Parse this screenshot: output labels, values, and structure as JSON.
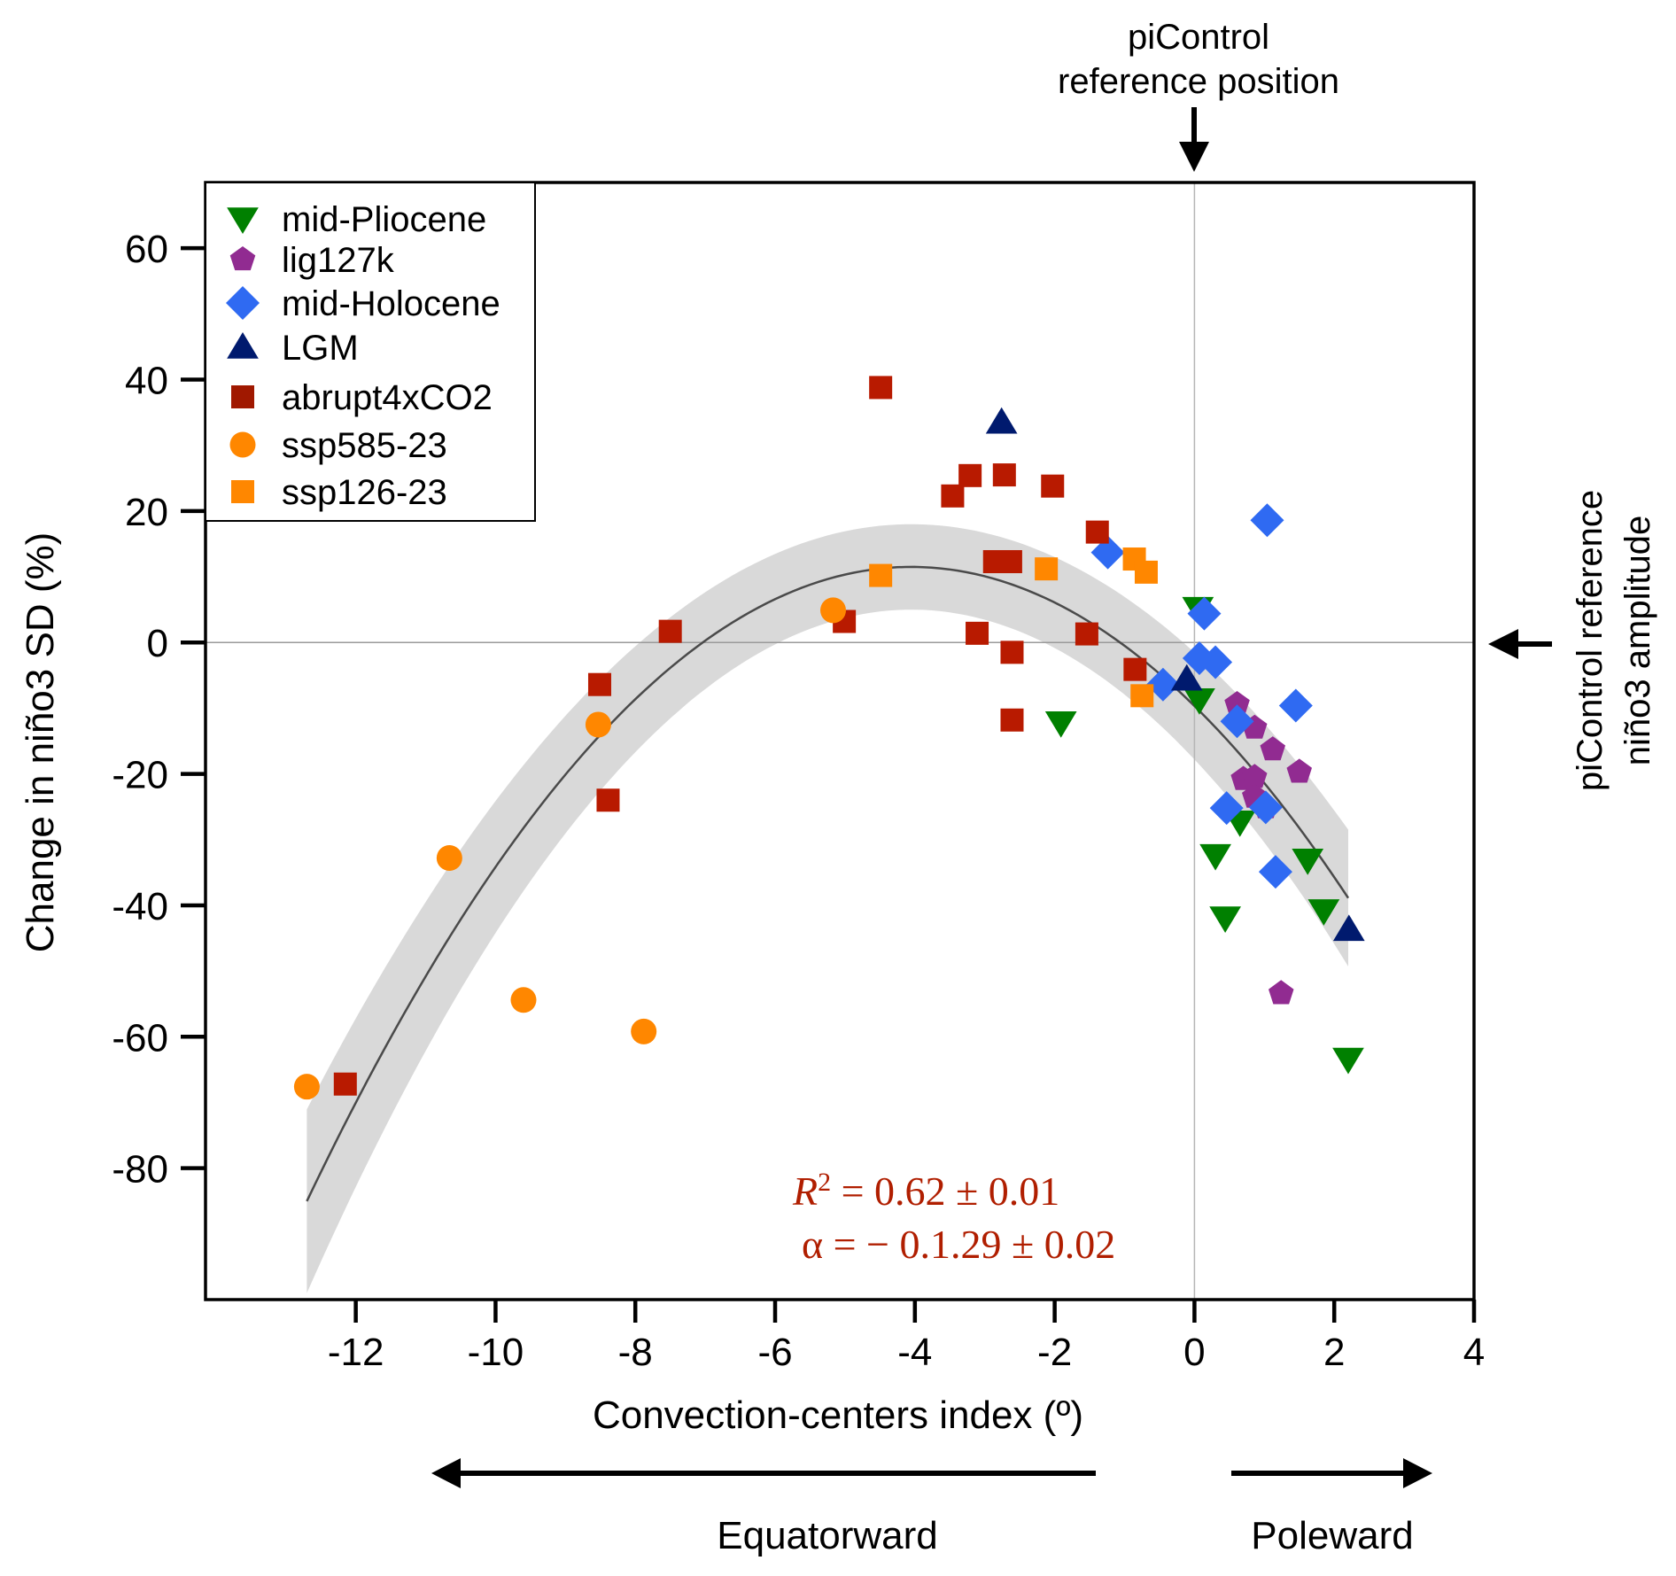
{
  "chart_data": {
    "type": "scatter",
    "xlabel": "Convection-centers index (º)",
    "ylabel": "Change in niño3 SD (%)",
    "xlim": [
      -14.15,
      4
    ],
    "ylim": [
      -100,
      70
    ],
    "x_ticks": [
      -12,
      -10,
      -8,
      -6,
      -4,
      -2,
      0,
      2,
      4
    ],
    "x_tick_labels": [
      "-12",
      "-10",
      "-8",
      "-6",
      "-4",
      "-2",
      "0",
      "2",
      "4"
    ],
    "y_ticks": [
      60,
      40,
      20,
      0,
      -20,
      -40,
      -60,
      -80
    ],
    "y_tick_labels": [
      "60",
      "40",
      "20",
      "0",
      "-20",
      "-40",
      "-60",
      "-80"
    ],
    "grid": false,
    "reference_lines": {
      "x": 0,
      "y": 0
    },
    "legend_position": "top-left",
    "series": [
      {
        "name": "mid-Pliocene",
        "marker": "triangle-down",
        "color": "#008000",
        "points": [
          [
            0.05,
            5.2
          ],
          [
            0.07,
            -8.7
          ],
          [
            -1.91,
            -12.2
          ],
          [
            0.65,
            -27.3
          ],
          [
            0.3,
            -32.4
          ],
          [
            1.62,
            -33.1
          ],
          [
            0.44,
            -41.9
          ],
          [
            1.85,
            -40.8
          ],
          [
            2.2,
            -63.4
          ]
        ]
      },
      {
        "name": "lig127k",
        "marker": "pentagon",
        "color": "#912B91",
        "points": [
          [
            0.61,
            -9.4
          ],
          [
            0.86,
            -13.0
          ],
          [
            1.12,
            -16.3
          ],
          [
            1.5,
            -19.7
          ],
          [
            0.7,
            -20.8
          ],
          [
            0.86,
            -20.5
          ],
          [
            0.86,
            -23.5
          ],
          [
            1.02,
            -25.1
          ],
          [
            1.24,
            -53.4
          ]
        ]
      },
      {
        "name": "mid-Holocene",
        "marker": "diamond",
        "color": "#2F6AF2",
        "points": [
          [
            1.04,
            18.6
          ],
          [
            -1.24,
            13.7
          ],
          [
            0.14,
            4.4
          ],
          [
            0.07,
            -2.4
          ],
          [
            0.3,
            -3.0
          ],
          [
            -0.45,
            -6.4
          ],
          [
            0.61,
            -12.0
          ],
          [
            1.45,
            -9.6
          ],
          [
            0.46,
            -25.2
          ],
          [
            1.02,
            -25.1
          ],
          [
            1.16,
            -34.9
          ]
        ]
      },
      {
        "name": "LGM",
        "marker": "triangle-up",
        "color": "#001A6E",
        "points": [
          [
            -2.76,
            33.5
          ],
          [
            -0.11,
            -5.6
          ],
          [
            2.21,
            -43.7
          ]
        ]
      },
      {
        "name": "abrupt4xCO2",
        "marker": "square",
        "color": "#B81A00",
        "points": [
          [
            -4.49,
            38.8
          ],
          [
            -3.21,
            25.4
          ],
          [
            -3.46,
            22.3
          ],
          [
            -2.72,
            25.5
          ],
          [
            -2.03,
            23.8
          ],
          [
            -1.39,
            16.8
          ],
          [
            -2.86,
            12.3
          ],
          [
            -2.63,
            12.3
          ],
          [
            -5.01,
            3.2
          ],
          [
            -7.5,
            1.7
          ],
          [
            -3.11,
            1.4
          ],
          [
            -2.61,
            -1.5
          ],
          [
            -1.54,
            1.3
          ],
          [
            -0.85,
            -4.1
          ],
          [
            -2.61,
            -11.8
          ],
          [
            -8.51,
            -6.4
          ],
          [
            -8.39,
            -24.0
          ],
          [
            -12.15,
            -67.2
          ]
        ]
      },
      {
        "name": "ssp585-23",
        "marker": "circle",
        "color": "#FF8700",
        "points": [
          [
            -5.17,
            4.9
          ],
          [
            -8.53,
            -12.5
          ],
          [
            -10.66,
            -32.8
          ],
          [
            -9.6,
            -54.4
          ],
          [
            -7.88,
            -59.2
          ],
          [
            -12.7,
            -67.6
          ]
        ]
      },
      {
        "name": "ssp126-23",
        "marker": "square",
        "color": "#FF8700",
        "points": [
          [
            -4.49,
            10.2
          ],
          [
            -2.12,
            11.2
          ],
          [
            -0.86,
            12.7
          ],
          [
            -0.69,
            10.7
          ],
          [
            -0.75,
            -8.1
          ]
        ]
      }
    ],
    "fit": {
      "type": "quadratic",
      "vertex_x": -4.05,
      "vertex_y": 11.5,
      "curvature": -1.29,
      "x_range": [
        -12.7,
        2.2
      ],
      "confidence_band_halfwidth_at_vertex": 6.5,
      "confidence_band_growth": 0.1,
      "line_color": "#4A4A4A",
      "band_color": "#D9D9D9"
    },
    "annotations": {
      "stats_line1": {
        "lhs": "R",
        "sup": "2",
        "rhs": " = 0.62 ± 0.01"
      },
      "stats_line2": "α = − 0.1.29 ± 0.02",
      "stats_color": "#B01E00",
      "top_reference": [
        "piControl",
        "reference position"
      ],
      "right_reference": [
        "piControl reference",
        "niño3 amplitude"
      ],
      "equatorward": "Equatorward",
      "poleward": "Poleward"
    }
  }
}
